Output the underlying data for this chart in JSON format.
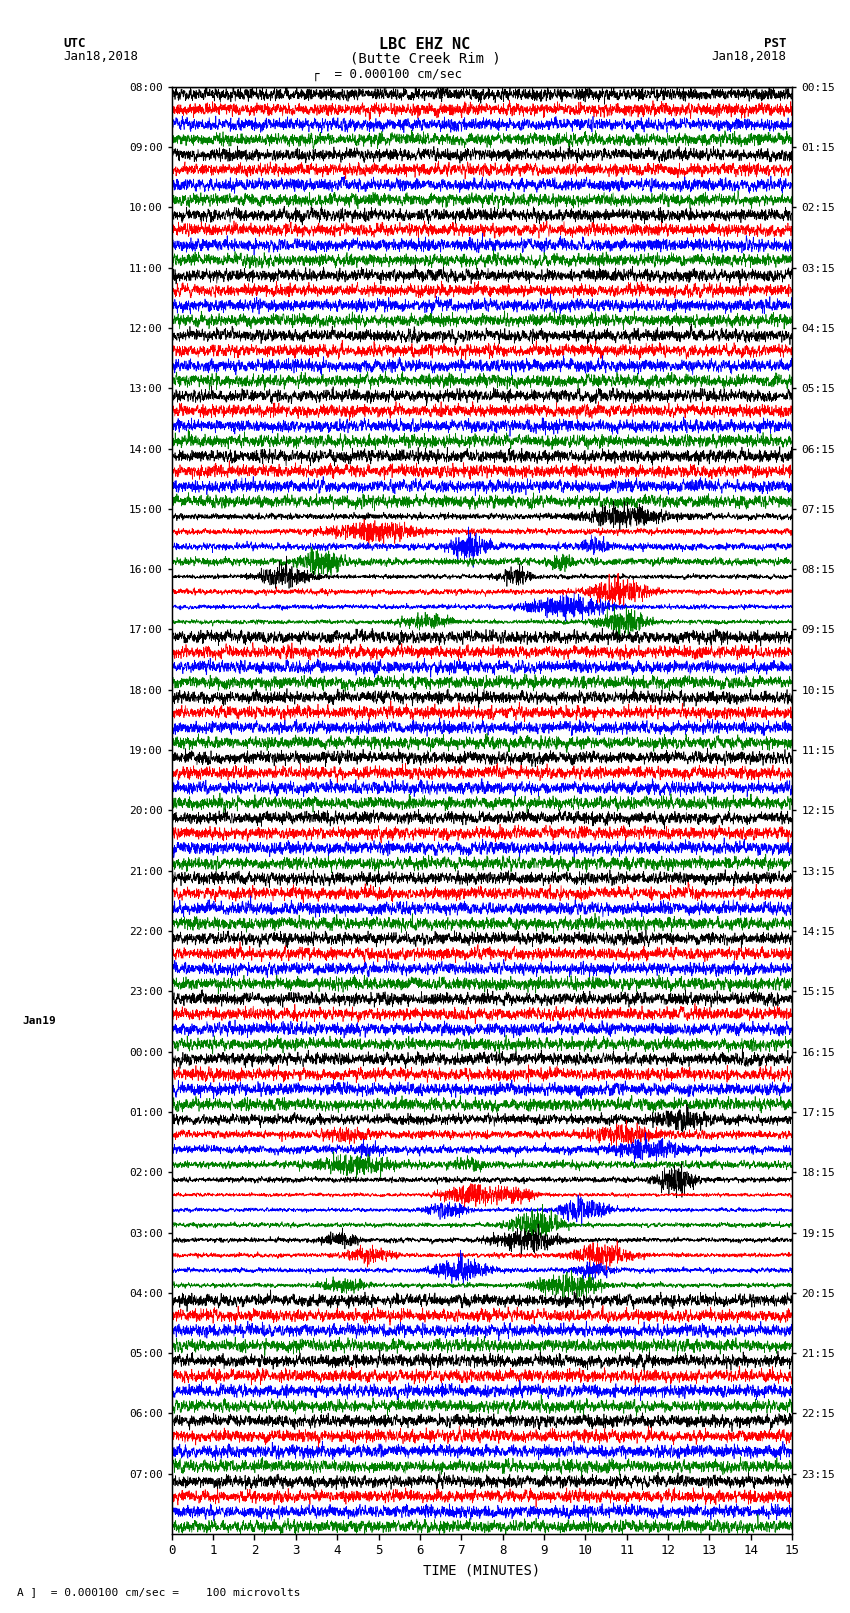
{
  "title_line1": "LBC EHZ NC",
  "title_line2": "(Butte Creek Rim )",
  "scale_label": "= 0.000100 cm/sec",
  "bottom_label": "= 0.000100 cm/sec =    100 microvolts",
  "xlabel": "TIME (MINUTES)",
  "left_header": "UTC",
  "left_date": "Jan18,2018",
  "right_header": "PST",
  "right_date": "Jan18,2018",
  "xlim": [
    0,
    15
  ],
  "xticks": [
    0,
    1,
    2,
    3,
    4,
    5,
    6,
    7,
    8,
    9,
    10,
    11,
    12,
    13,
    14,
    15
  ],
  "colors": [
    "black",
    "red",
    "blue",
    "green"
  ],
  "n_blocks": 24,
  "utc_labels": [
    "08:00",
    "09:00",
    "10:00",
    "11:00",
    "12:00",
    "13:00",
    "14:00",
    "15:00",
    "16:00",
    "17:00",
    "18:00",
    "19:00",
    "20:00",
    "21:00",
    "22:00",
    "23:00",
    "00:00",
    "01:00",
    "02:00",
    "03:00",
    "04:00",
    "05:00",
    "06:00",
    "07:00"
  ],
  "pst_labels": [
    "00:15",
    "01:15",
    "02:15",
    "03:15",
    "04:15",
    "05:15",
    "06:15",
    "07:15",
    "08:15",
    "09:15",
    "10:15",
    "11:15",
    "12:15",
    "13:15",
    "14:15",
    "15:15",
    "16:15",
    "17:15",
    "18:15",
    "19:15",
    "20:15",
    "21:15",
    "22:15",
    "23:15"
  ],
  "fig_width": 8.5,
  "fig_height": 16.13,
  "background_color": "white",
  "font_family": "monospace",
  "trace_lw": 0.5,
  "n_pts": 3000,
  "trace_amplitude": 0.42,
  "event_blocks": [
    7,
    8,
    17,
    18,
    19
  ],
  "event_amplitudes": [
    3.0,
    4.0,
    2.0,
    5.0,
    4.0
  ]
}
